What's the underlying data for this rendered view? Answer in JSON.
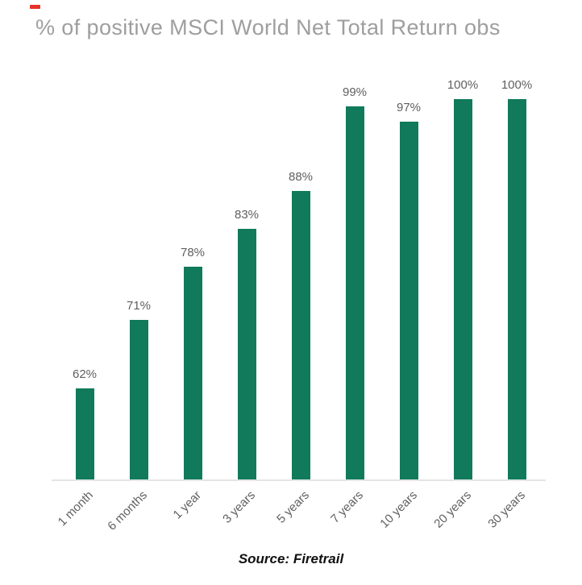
{
  "title": "% of positive MSCI World Net Total Return obs",
  "source": "Source: Firetrail",
  "colors": {
    "bar": "#107a5b",
    "title_text": "#9e9e9e",
    "value_label": "#5f5f5f",
    "tick_label": "#606060",
    "axis_line": "#e4e4e4",
    "red_mark": "#e5332a"
  },
  "chart_data": {
    "type": "bar",
    "categories": [
      "1 month",
      "6 months",
      "1 year",
      "3 years",
      "5 years",
      "7 years",
      "10 years",
      "20 years",
      "30 years"
    ],
    "values": [
      62,
      71,
      78,
      83,
      88,
      99,
      97,
      100,
      100
    ],
    "value_labels": [
      "62%",
      "71%",
      "78%",
      "83%",
      "88%",
      "99%",
      "97%",
      "100%",
      "100%"
    ],
    "title": "% of positive MSCI World Net Total Return obs",
    "xlabel": "",
    "ylabel": "",
    "ylim": [
      50,
      100
    ],
    "grid": false,
    "legend": false,
    "bar_color": "#107a5b",
    "data_labels_shown": true,
    "tick_label_rotation_deg": 45
  }
}
